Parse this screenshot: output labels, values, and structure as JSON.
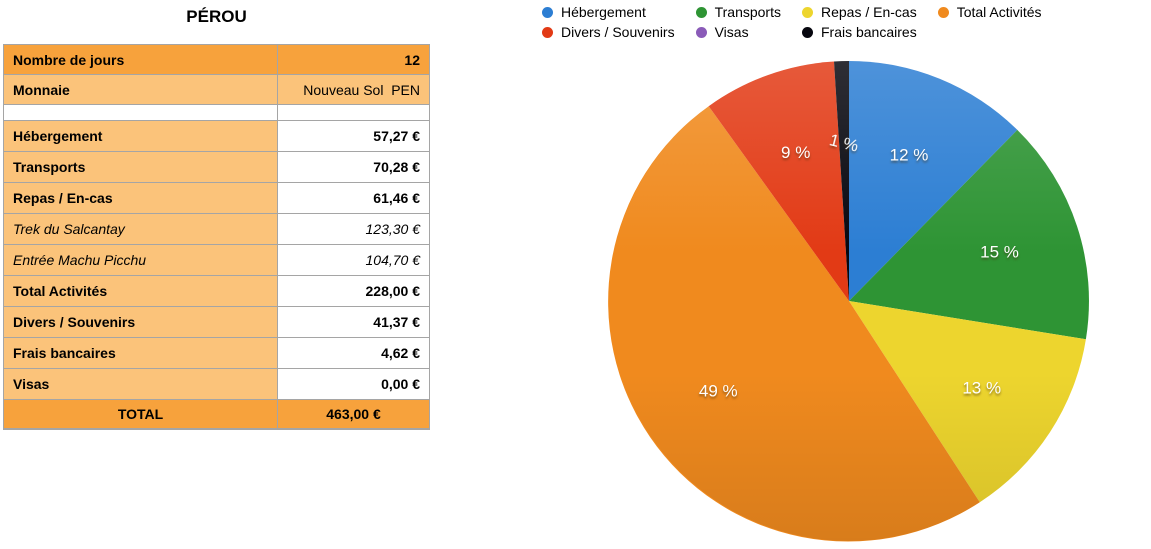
{
  "table": {
    "title": "PÉROU",
    "info_rows": [
      {
        "label": "Nombre de jours",
        "value": "12",
        "shade": "dark",
        "value_bold": true
      },
      {
        "label": "Monnaie",
        "value": "Nouveau Sol  PEN",
        "shade": "light",
        "value_bold": false
      }
    ],
    "rows": [
      {
        "label": "Hébergement",
        "value": "57,27 €",
        "italic": false
      },
      {
        "label": "Transports",
        "value": "70,28 €",
        "italic": false
      },
      {
        "label": "Repas / En-cas",
        "value": "61,46 €",
        "italic": false
      },
      {
        "label": "Trek du Salcantay",
        "value": "123,30 €",
        "italic": true
      },
      {
        "label": "Entrée Machu Picchu",
        "value": "104,70 €",
        "italic": true
      },
      {
        "label": "Total Activités",
        "value": "228,00 €",
        "italic": false
      },
      {
        "label": "Divers / Souvenirs",
        "value": "41,37 €",
        "italic": false
      },
      {
        "label": "Frais bancaires",
        "value": "4,62 €",
        "italic": false
      },
      {
        "label": "Visas",
        "value": "0,00 €",
        "italic": false
      }
    ],
    "total_row": {
      "label": "TOTAL",
      "value": "463,00 €"
    }
  },
  "colors": {
    "table_orange_dark": "#F7A23C",
    "table_orange_light": "#FBC37A",
    "table_border": "#A5A5A5",
    "pie_label_text": "#FFFFFF"
  },
  "chart_data": {
    "type": "pie",
    "title": "",
    "legend_position": "top",
    "direction": "clockwise",
    "start_angle_deg": 0,
    "label_radius_ratio": 0.66,
    "series": [
      {
        "name": "Hébergement",
        "value": 57.27,
        "pct_label": "12 %",
        "color": "#2C7ED3",
        "label_rotation_deg": 0
      },
      {
        "name": "Transports",
        "value": 70.28,
        "pct_label": "15 %",
        "color": "#2E9434",
        "label_rotation_deg": 0
      },
      {
        "name": "Repas / En-cas",
        "value": 61.46,
        "pct_label": "13 %",
        "color": "#EDD52E",
        "label_rotation_deg": 0
      },
      {
        "name": "Total Activités",
        "value": 228.0,
        "pct_label": "49 %",
        "color": "#F08A1E",
        "label_rotation_deg": 0
      },
      {
        "name": "Divers / Souvenirs",
        "value": 41.37,
        "pct_label": "9 %",
        "color": "#E23A15",
        "label_rotation_deg": 0
      },
      {
        "name": "Visas",
        "value": 0.0,
        "pct_label": "",
        "color": "#8A5BB8",
        "label_rotation_deg": 0
      },
      {
        "name": "Frais bancaires",
        "value": 4.62,
        "pct_label": "1 %",
        "color": "#07070F",
        "label_rotation_deg": 14
      }
    ],
    "legend_order": [
      "Hébergement",
      "Divers / Souvenirs",
      "Transports",
      "Visas",
      "Repas / En-cas",
      "Frais bancaires",
      "Total Activités"
    ]
  }
}
